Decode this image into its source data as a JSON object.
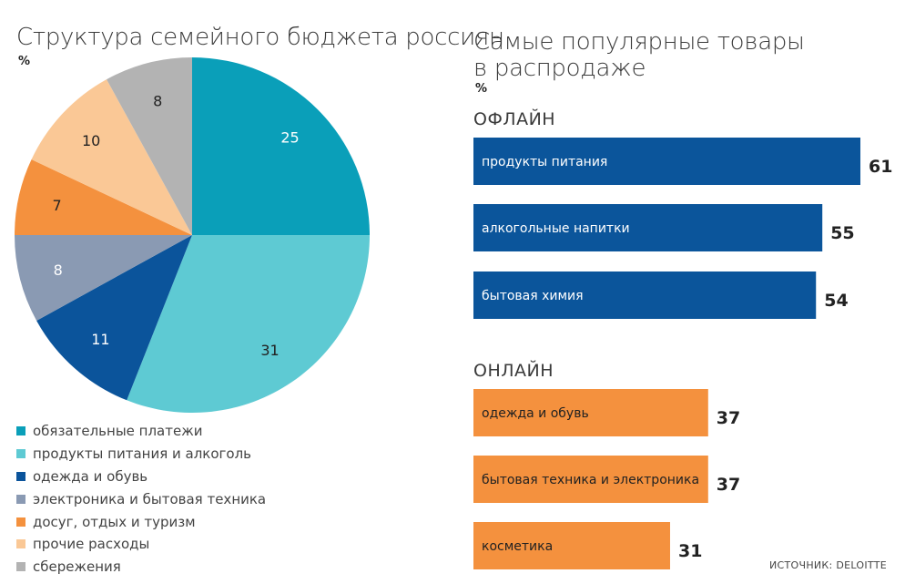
{
  "left_title": "Структура семейного бюджета россиян",
  "left_unit": "%",
  "right_title_line1": "Самые популярные товары",
  "right_title_line2": "в распродаже",
  "right_unit": "%",
  "source": "ИСТОЧНИК: DELOITTE",
  "chart_data": [
    {
      "type": "pie",
      "title": "Структура семейного бюджета россиян",
      "unit": "%",
      "slices": [
        {
          "label": "обязательные платежи",
          "value": 25,
          "color": "#0a9fb9"
        },
        {
          "label": "продукты питания и алкоголь",
          "value": 31,
          "color": "#5ecad3"
        },
        {
          "label": "одежда и обувь",
          "value": 11,
          "color": "#0b549b"
        },
        {
          "label": "электроника и бытовая техника",
          "value": 8,
          "color": "#8a9ab3"
        },
        {
          "label": "досуг, отдых и туризм",
          "value": 7,
          "color": "#f4913e"
        },
        {
          "label": "прочие расходы",
          "value": 10,
          "color": "#fac896"
        },
        {
          "label": "сбережения",
          "value": 8,
          "color": "#b3b3b3"
        }
      ]
    },
    {
      "type": "bar",
      "orientation": "horizontal",
      "title": "Самые популярные товары в распродаже",
      "unit": "%",
      "groups": [
        {
          "name": "ОФЛАЙН",
          "color": "#0b559b",
          "categories": [
            "продукты питания",
            "алкогольные напитки",
            "бытовая химия"
          ],
          "values": [
            61,
            55,
            54
          ]
        },
        {
          "name": "ОНЛАЙН",
          "color": "#f4913e",
          "categories": [
            "одежда и обувь",
            "бытовая техника и электроника",
            "косметика"
          ],
          "values": [
            37,
            37,
            31
          ]
        }
      ]
    }
  ]
}
